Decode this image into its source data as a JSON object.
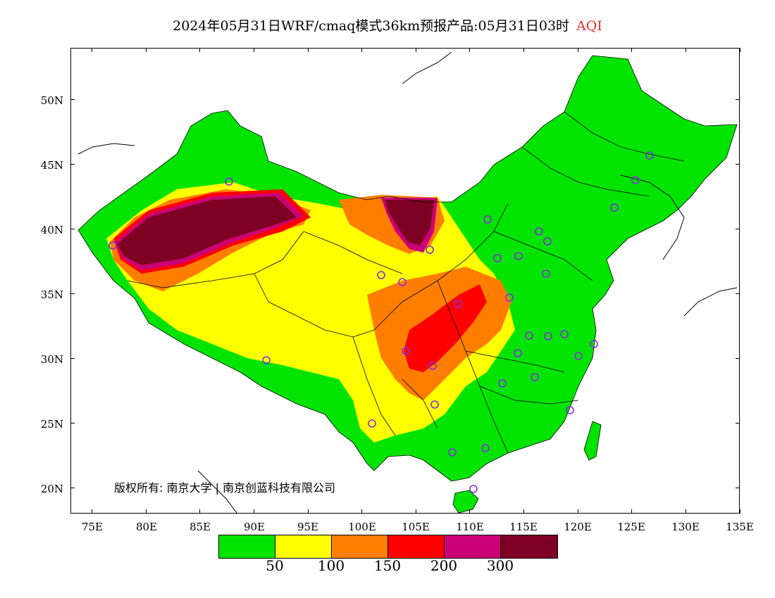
{
  "title": {
    "main": "2024年05月31日WRF/cmaq模式36km预报产品:05月31日03时",
    "variable": "AQI"
  },
  "axes": {
    "y_ticks": [
      "50N",
      "45N",
      "40N",
      "35N",
      "30N",
      "25N",
      "20N"
    ],
    "x_ticks": [
      "75E",
      "80E",
      "85E",
      "90E",
      "95E",
      "100E",
      "105E",
      "110E",
      "115E",
      "120E",
      "125E",
      "130E",
      "135E"
    ],
    "lon_range": [
      73,
      135
    ],
    "lat_range": [
      18,
      54
    ]
  },
  "legend": {
    "colors": [
      "#00e400",
      "#ffff00",
      "#ff7e00",
      "#ff0000",
      "#cc0077",
      "#7e0023"
    ],
    "labels": [
      "50",
      "100",
      "150",
      "200",
      "300"
    ]
  },
  "copyright": "版权所有: 南京大学 | 南京创蓝科技有限公司"
}
